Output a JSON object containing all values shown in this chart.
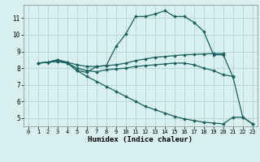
{
  "bg_color": "#d8f0f0",
  "grid_color": "#b8d8d8",
  "line_color": "#1a6060",
  "xlabel": "Humidex (Indice chaleur)",
  "xlim": [
    -0.5,
    23.5
  ],
  "ylim": [
    4.5,
    11.8
  ],
  "xticks": [
    0,
    1,
    2,
    3,
    4,
    5,
    6,
    7,
    8,
    9,
    10,
    11,
    12,
    13,
    14,
    15,
    16,
    17,
    18,
    19,
    20,
    21,
    22,
    23
  ],
  "yticks": [
    5,
    6,
    7,
    8,
    9,
    10,
    11
  ],
  "lines": [
    {
      "x": [
        1,
        2,
        3,
        4,
        5,
        6,
        7,
        8,
        9,
        10,
        11,
        12,
        13,
        14,
        15,
        16,
        17,
        18,
        19,
        20,
        21,
        22,
        23
      ],
      "y": [
        8.3,
        8.35,
        8.5,
        8.35,
        7.85,
        7.75,
        8.1,
        8.15,
        9.3,
        10.05,
        11.1,
        11.1,
        11.25,
        11.45,
        11.1,
        11.1,
        10.75,
        10.2,
        8.8,
        8.8,
        7.45,
        5.05,
        4.65
      ]
    },
    {
      "x": [
        1,
        2,
        3,
        4,
        5,
        6,
        7,
        8,
        9,
        10,
        11,
        12,
        13,
        14,
        15,
        16,
        17,
        18,
        19,
        20
      ],
      "y": [
        8.3,
        8.35,
        8.5,
        8.35,
        8.2,
        8.1,
        8.1,
        8.15,
        8.2,
        8.3,
        8.45,
        8.55,
        8.65,
        8.7,
        8.75,
        8.8,
        8.82,
        8.85,
        8.87,
        8.87
      ]
    },
    {
      "x": [
        1,
        2,
        3,
        4,
        5,
        6,
        7,
        8,
        9,
        10,
        11,
        12,
        13,
        14,
        15,
        16,
        17,
        18,
        19,
        20,
        21
      ],
      "y": [
        8.3,
        8.35,
        8.4,
        8.3,
        8.0,
        7.85,
        7.78,
        7.9,
        7.95,
        8.0,
        8.1,
        8.15,
        8.2,
        8.25,
        8.3,
        8.3,
        8.2,
        8.0,
        7.85,
        7.6,
        7.5
      ]
    },
    {
      "x": [
        1,
        2,
        3,
        4,
        5,
        6,
        7,
        8,
        9,
        10,
        11,
        12,
        13,
        14,
        15,
        16,
        17,
        18,
        19,
        20,
        21,
        22,
        23
      ],
      "y": [
        8.3,
        8.35,
        8.4,
        8.3,
        7.85,
        7.5,
        7.2,
        6.9,
        6.6,
        6.3,
        6.0,
        5.7,
        5.5,
        5.3,
        5.1,
        4.95,
        4.85,
        4.75,
        4.7,
        4.65,
        5.05,
        5.05,
        4.65
      ]
    }
  ]
}
